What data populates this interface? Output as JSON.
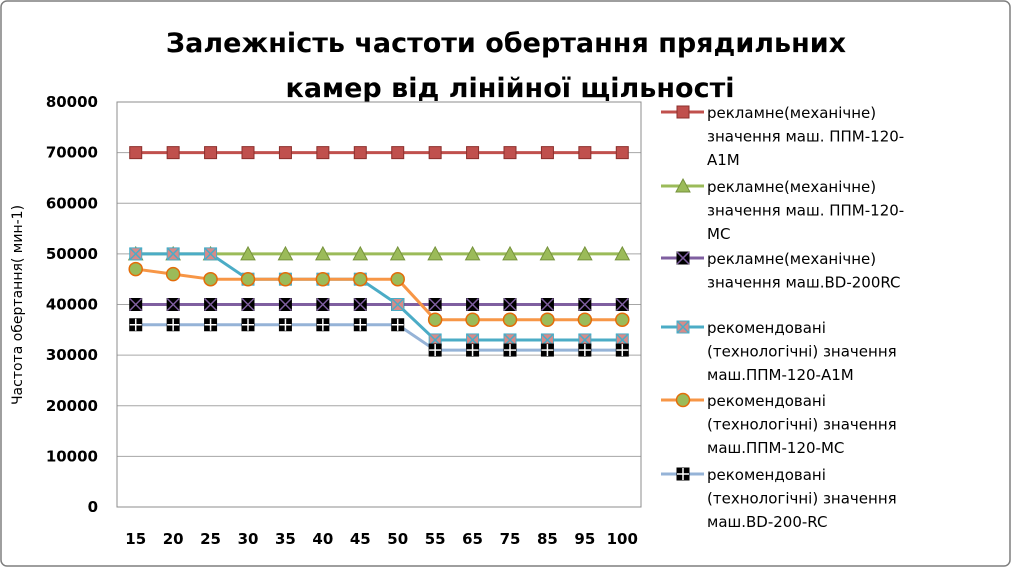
{
  "chart_data": {
    "type": "line",
    "title_lines": [
      "Залежність частоти обертання прядильних",
      "камер від лінійної щільності"
    ],
    "xlabel": "",
    "ylabel": "Частота обертання( мин-1)",
    "ylim": [
      0,
      80000
    ],
    "yticks": [
      0,
      10000,
      20000,
      30000,
      40000,
      50000,
      60000,
      70000,
      80000
    ],
    "categories": [
      "15",
      "20",
      "25",
      "30",
      "35",
      "40",
      "45",
      "50",
      "55",
      "65",
      "75",
      "85",
      "95",
      "100"
    ],
    "grid": "horizontal",
    "legend_position": "right",
    "series": [
      {
        "name_lines": [
          "рекламне(механічне)",
          "значення маш. ППМ-120-",
          "А1М"
        ],
        "color": "#c0504d",
        "marker": "square",
        "marker_fill": "#c0504d",
        "marker_stroke": "#8b2f2c",
        "values": [
          70000,
          70000,
          70000,
          70000,
          70000,
          70000,
          70000,
          70000,
          70000,
          70000,
          70000,
          70000,
          70000,
          70000
        ]
      },
      {
        "name_lines": [
          "рекламне(механічне)",
          "значення  маш. ППМ-120-",
          "МС"
        ],
        "color": "#9bbb59",
        "marker": "triangle",
        "marker_fill": "#9bbb59",
        "marker_stroke": "#76923c",
        "values": [
          50000,
          50000,
          50000,
          50000,
          50000,
          50000,
          50000,
          50000,
          50000,
          50000,
          50000,
          50000,
          50000,
          50000
        ]
      },
      {
        "name_lines": [
          "рекламне(механічне)",
          "значення  маш.BD-200RC"
        ],
        "color": "#7f5fa0",
        "marker": "x-square",
        "marker_fill": "#000000",
        "marker_stroke": "#000000",
        "values": [
          40000,
          40000,
          40000,
          40000,
          40000,
          40000,
          40000,
          40000,
          40000,
          40000,
          40000,
          40000,
          40000,
          40000
        ]
      },
      {
        "name_lines": [
          "рекомендовані",
          "(технологічні) значення",
          "маш.ППМ-120-А1М"
        ],
        "color": "#4bacc6",
        "marker": "x-square",
        "marker_fill": "#d88a88",
        "marker_stroke": "#4bacc6",
        "values": [
          50000,
          50000,
          50000,
          45000,
          45000,
          45000,
          45000,
          40000,
          33000,
          33000,
          33000,
          33000,
          33000,
          33000
        ]
      },
      {
        "name_lines": [
          "рекомендовані",
          "(технологічні) значення",
          "маш.ППМ-120-МС"
        ],
        "color": "#f79646",
        "marker": "circle",
        "marker_fill": "#9bbb59",
        "marker_stroke": "#e36c09",
        "values": [
          47000,
          46000,
          45000,
          45000,
          45000,
          45000,
          45000,
          45000,
          37000,
          37000,
          37000,
          37000,
          37000,
          37000
        ]
      },
      {
        "name_lines": [
          "рекомендовані",
          "(технологічні) значення",
          "маш.BD-200-RC"
        ],
        "color": "#95b3d7",
        "marker": "plus-square",
        "marker_fill": "#000000",
        "marker_stroke": "#000000",
        "values": [
          36000,
          36000,
          36000,
          36000,
          36000,
          36000,
          36000,
          36000,
          31000,
          31000,
          31000,
          31000,
          31000,
          31000
        ]
      }
    ]
  }
}
